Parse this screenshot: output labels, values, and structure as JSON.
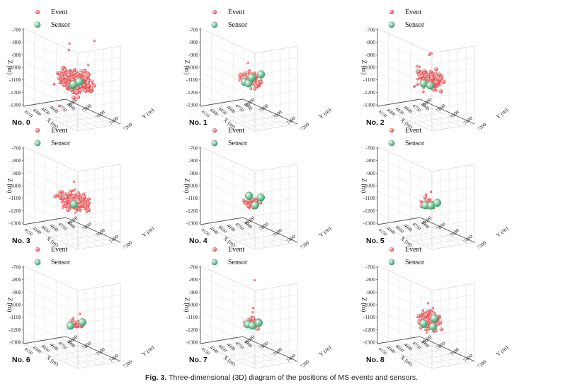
{
  "figure": {
    "caption_label": "Fig. 3.",
    "caption_text": "Three-dimensional (3D) diagram of the positions of MS events and sensors."
  },
  "chart_data": [
    {
      "type": "scatter3d",
      "title": "No. 0",
      "zlabel": "Z (m)",
      "xlabel": "X (m)",
      "ylabel": "Y (m)",
      "zticks": [
        -700,
        -800,
        -900,
        -1000,
        -1100,
        -1200,
        -1300
      ],
      "xticks": [
        4150,
        4300,
        4450,
        4600,
        4750,
        4900
      ],
      "yticks": [
        7200,
        7400,
        7600,
        7800,
        8000
      ],
      "legend": [
        "Event",
        "Sensor"
      ],
      "events": {
        "count": 480,
        "center": [
          0.58,
          0.52,
          -1040
        ],
        "spread": [
          0.22,
          0.22,
          60
        ],
        "outliers": [
          [
            0.3,
            0.6,
            -760
          ],
          [
            0.7,
            0.3,
            -790
          ],
          [
            0.5,
            0.8,
            -850
          ],
          [
            0.2,
            0.5,
            -1220
          ],
          [
            0.9,
            0.6,
            -720
          ]
        ]
      },
      "sensors": [
        [
          0.45,
          0.55,
          -1060
        ],
        [
          0.6,
          0.45,
          -1080
        ],
        [
          0.52,
          0.62,
          -1020
        ]
      ]
    },
    {
      "type": "scatter3d",
      "title": "No. 1",
      "zlabel": "Z (m)",
      "xlabel": "X (m)",
      "ylabel": "Y (m)",
      "zticks": [
        -700,
        -800,
        -900,
        -1000,
        -1100,
        -1200,
        -1300
      ],
      "xticks": [
        4150,
        4300,
        4450,
        4600,
        4750,
        4900
      ],
      "yticks": [
        7200,
        7400,
        7600,
        7800,
        8000
      ],
      "legend": [
        "Event",
        "Sensor"
      ],
      "events": {
        "count": 80,
        "center": [
          0.55,
          0.5,
          -1030
        ],
        "spread": [
          0.14,
          0.14,
          45
        ],
        "outliers": [
          [
            0.5,
            0.5,
            -1230
          ],
          [
            0.6,
            0.4,
            -920
          ]
        ]
      },
      "sensors": [
        [
          0.4,
          0.5,
          -1040
        ],
        [
          0.55,
          0.45,
          -1070
        ],
        [
          0.68,
          0.58,
          -980
        ],
        [
          0.5,
          0.55,
          -1000
        ]
      ]
    },
    {
      "type": "scatter3d",
      "title": "No. 2",
      "zlabel": "Z (m)",
      "xlabel": "X (m)",
      "ylabel": "Y (m)",
      "zticks": [
        -700,
        -800,
        -900,
        -1000,
        -1100,
        -1200,
        -1300
      ],
      "xticks": [
        4150,
        4300,
        4450,
        4600,
        4750,
        4900
      ],
      "yticks": [
        7200,
        7400,
        7600,
        7800,
        8000
      ],
      "legend": [
        "Event",
        "Sensor"
      ],
      "events": {
        "count": 220,
        "center": [
          0.55,
          0.52,
          -1030
        ],
        "spread": [
          0.18,
          0.18,
          55
        ],
        "outliers": [
          [
            0.6,
            0.5,
            -820
          ],
          [
            0.7,
            0.4,
            -860
          ],
          [
            0.5,
            0.6,
            -800
          ]
        ]
      },
      "sensors": [
        [
          0.42,
          0.52,
          -1050
        ],
        [
          0.6,
          0.5,
          -1080
        ]
      ]
    },
    {
      "type": "scatter3d",
      "title": "No. 3",
      "zlabel": "Z (m)",
      "xlabel": "X (m)",
      "ylabel": "Y (m)",
      "zticks": [
        -700,
        -800,
        -900,
        -1000,
        -1100,
        -1200,
        -1300
      ],
      "xticks": [
        4150,
        4300,
        4450,
        4600,
        4750,
        4900
      ],
      "yticks": [
        7200,
        7400,
        7600,
        7800,
        8000
      ],
      "legend": [
        "Event",
        "Sensor"
      ],
      "events": {
        "count": 260,
        "center": [
          0.55,
          0.5,
          -1060
        ],
        "spread": [
          0.2,
          0.2,
          45
        ],
        "outliers": [
          [
            0.55,
            0.5,
            -900
          ],
          [
            0.6,
            0.45,
            -980
          ],
          [
            0.5,
            0.55,
            -950
          ]
        ]
      },
      "sensors": [
        [
          0.55,
          0.5,
          -1080
        ]
      ]
    },
    {
      "type": "scatter3d",
      "title": "No. 4",
      "zlabel": "Z (m)",
      "xlabel": "X (m)",
      "ylabel": "Y (m)",
      "zticks": [
        -700,
        -800,
        -900,
        -1000,
        -1100,
        -1200,
        -1300
      ],
      "xticks": [
        4150,
        4300,
        4450,
        4600,
        4750,
        4900
      ],
      "yticks": [
        7200,
        7400,
        7600,
        7800,
        8000
      ],
      "legend": [
        "Event",
        "Sensor"
      ],
      "events": {
        "count": 70,
        "center": [
          0.55,
          0.52,
          -1060
        ],
        "spread": [
          0.1,
          0.1,
          30
        ],
        "outliers": []
      },
      "sensors": [
        [
          0.5,
          0.5,
          -1010
        ],
        [
          0.58,
          0.55,
          -1080
        ],
        [
          0.78,
          0.5,
          -1040
        ]
      ]
    },
    {
      "type": "scatter3d",
      "title": "No. 5",
      "zlabel": "Z (m)",
      "xlabel": "X (m)",
      "ylabel": "Y (m)",
      "zticks": [
        -700,
        -800,
        -900,
        -1000,
        -1100,
        -1200,
        -1300
      ],
      "xticks": [
        4150,
        4300,
        4450,
        4600,
        4750,
        4900
      ],
      "yticks": [
        7200,
        7400,
        7600,
        7800,
        8000
      ],
      "legend": [
        "Event",
        "Sensor"
      ],
      "events": {
        "count": 60,
        "center": [
          0.56,
          0.52,
          -1075
        ],
        "spread": [
          0.1,
          0.1,
          25
        ],
        "outliers": [
          [
            0.55,
            0.55,
            -970
          ],
          [
            0.5,
            0.5,
            -1000
          ]
        ]
      },
      "sensors": [
        [
          0.46,
          0.52,
          -1080
        ],
        [
          0.62,
          0.5,
          -1095
        ],
        [
          0.66,
          0.58,
          -1060
        ]
      ]
    },
    {
      "type": "scatter3d",
      "title": "No. 6",
      "zlabel": "Z (m)",
      "xlabel": "X (m)",
      "ylabel": "Y (m)",
      "zticks": [
        -700,
        -800,
        -900,
        -1000,
        -1100,
        -1200,
        -1300
      ],
      "xticks": [
        4150,
        4300,
        4450,
        4600,
        4750,
        4900
      ],
      "yticks": [
        7200,
        7400,
        7600,
        7800,
        8000
      ],
      "legend": [
        "Event",
        "Sensor"
      ],
      "events": {
        "count": 40,
        "center": [
          0.56,
          0.52,
          -1080
        ],
        "spread": [
          0.08,
          0.08,
          20
        ],
        "outliers": [
          [
            0.62,
            0.55,
            -1000
          ]
        ]
      },
      "sensors": [
        [
          0.44,
          0.52,
          -1090
        ],
        [
          0.68,
          0.55,
          -1070
        ]
      ]
    },
    {
      "type": "scatter3d",
      "title": "No. 7",
      "zlabel": "Z (m)",
      "xlabel": "X (m)",
      "ylabel": "Y (m)",
      "zticks": [
        -700,
        -800,
        -900,
        -1000,
        -1100,
        -1200,
        -1300
      ],
      "xticks": [
        4150,
        4300,
        4450,
        4600,
        4750,
        4900
      ],
      "yticks": [
        7200,
        7400,
        7600,
        7800,
        8000
      ],
      "legend": [
        "Event",
        "Sensor"
      ],
      "events": {
        "count": 70,
        "center": [
          0.56,
          0.52,
          -1080
        ],
        "spread": [
          0.1,
          0.1,
          30
        ],
        "outliers": [
          [
            0.56,
            0.52,
            -990
          ],
          [
            0.6,
            0.5,
            -960
          ],
          [
            0.58,
            0.54,
            -730
          ]
        ]
      },
      "sensors": [
        [
          0.45,
          0.52,
          -1080
        ],
        [
          0.58,
          0.5,
          -1100
        ],
        [
          0.66,
          0.55,
          -1070
        ],
        [
          0.6,
          0.6,
          -1060
        ]
      ]
    },
    {
      "type": "scatter3d",
      "title": "No. 8",
      "zlabel": "Z (m)",
      "xlabel": "X (m)",
      "ylabel": "Y (m)",
      "zticks": [
        -700,
        -800,
        -900,
        -1000,
        -1100,
        -1200,
        -1300
      ],
      "xticks": [
        4150,
        4300,
        4450,
        4600,
        4750,
        4900
      ],
      "yticks": [
        7200,
        7400,
        7600,
        7800,
        8000
      ],
      "legend": [
        "Event",
        "Sensor"
      ],
      "events": {
        "count": 200,
        "center": [
          0.56,
          0.52,
          -1060
        ],
        "spread": [
          0.14,
          0.14,
          55
        ],
        "outliers": [
          [
            0.55,
            0.5,
            -920
          ],
          [
            0.6,
            0.55,
            -950
          ]
        ]
      },
      "sensors": [
        [
          0.42,
          0.52,
          -1070
        ],
        [
          0.7,
          0.5,
          -1050
        ],
        [
          0.6,
          0.55,
          -1100
        ]
      ]
    }
  ],
  "colors": {
    "event": "#e0474c",
    "event_light": "#f6aaa8",
    "sensor": "#3e9f6c",
    "sensor_light": "#a9dcbd",
    "axis": "#555555",
    "grid": "#dddddd"
  }
}
